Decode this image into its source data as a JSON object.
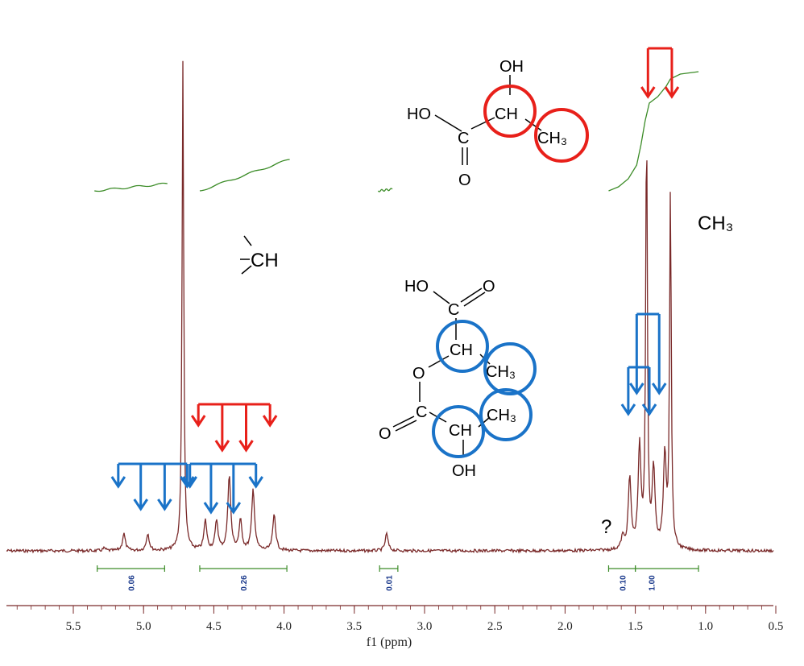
{
  "chart_data": {
    "type": "line",
    "title": "",
    "xlabel": "f1 (ppm)",
    "ylabel": "",
    "x_axis_reversed": true,
    "xlim": [
      5.95,
      0.5
    ],
    "x_ticks": [
      "5.5",
      "5.0",
      "4.5",
      "4.0",
      "3.5",
      "3.0",
      "2.5",
      "2.0",
      "1.5",
      "1.0",
      "0.5"
    ],
    "colors": {
      "spectrum": "#7a2a2a",
      "integral": "#3c8c28",
      "red_marker": "#e8201a",
      "blue_marker": "#1a73c8",
      "integral_label": "#1b3a8c"
    },
    "peaks": [
      {
        "ppm": 5.28,
        "height": 0.005
      },
      {
        "ppm": 5.14,
        "height": 0.035
      },
      {
        "ppm": 4.97,
        "height": 0.035
      },
      {
        "ppm": 4.72,
        "height": 1.0
      },
      {
        "ppm": 4.56,
        "height": 0.06
      },
      {
        "ppm": 4.48,
        "height": 0.06
      },
      {
        "ppm": 4.39,
        "height": 0.155
      },
      {
        "ppm": 4.31,
        "height": 0.06
      },
      {
        "ppm": 4.22,
        "height": 0.125
      },
      {
        "ppm": 4.07,
        "height": 0.075
      },
      {
        "ppm": 3.27,
        "height": 0.035
      },
      {
        "ppm": 1.59,
        "height": 0.025
      },
      {
        "ppm": 1.54,
        "height": 0.145
      },
      {
        "ppm": 1.47,
        "height": 0.205
      },
      {
        "ppm": 1.42,
        "height": 0.88
      },
      {
        "ppm": 1.37,
        "height": 0.16
      },
      {
        "ppm": 1.29,
        "height": 0.19
      },
      {
        "ppm": 1.25,
        "height": 0.73
      }
    ],
    "integrals": [
      {
        "from": 5.33,
        "to": 4.85,
        "value": "0.06"
      },
      {
        "from": 4.6,
        "to": 3.98,
        "value": "0.26"
      },
      {
        "from": 3.32,
        "to": 3.19,
        "value": "0.01"
      },
      {
        "from": 1.69,
        "to": 1.5,
        "value": "0.10"
      },
      {
        "from": 1.5,
        "to": 1.05,
        "value": "1.00"
      }
    ],
    "annotations": {
      "ch_label": "CH",
      "ch3_label": "CH₃",
      "question_mark": "?"
    },
    "structures": {
      "lactic_acid": {
        "oh_top": "OH",
        "ho_left": "HO",
        "ch": "CH",
        "ch3": "CH₃",
        "c": "C",
        "o": "O"
      },
      "lactide_dimer": {
        "ho_top": "HO",
        "o_top": "O",
        "c_top": "C",
        "ch_top": "CH",
        "ch3_upper": "CH₃",
        "o_mid": "O",
        "o_left": "O",
        "c_bottom": "C",
        "ch3_lower": "CH₃",
        "ch_bottom": "CH",
        "oh_bottom": "OH"
      }
    }
  }
}
